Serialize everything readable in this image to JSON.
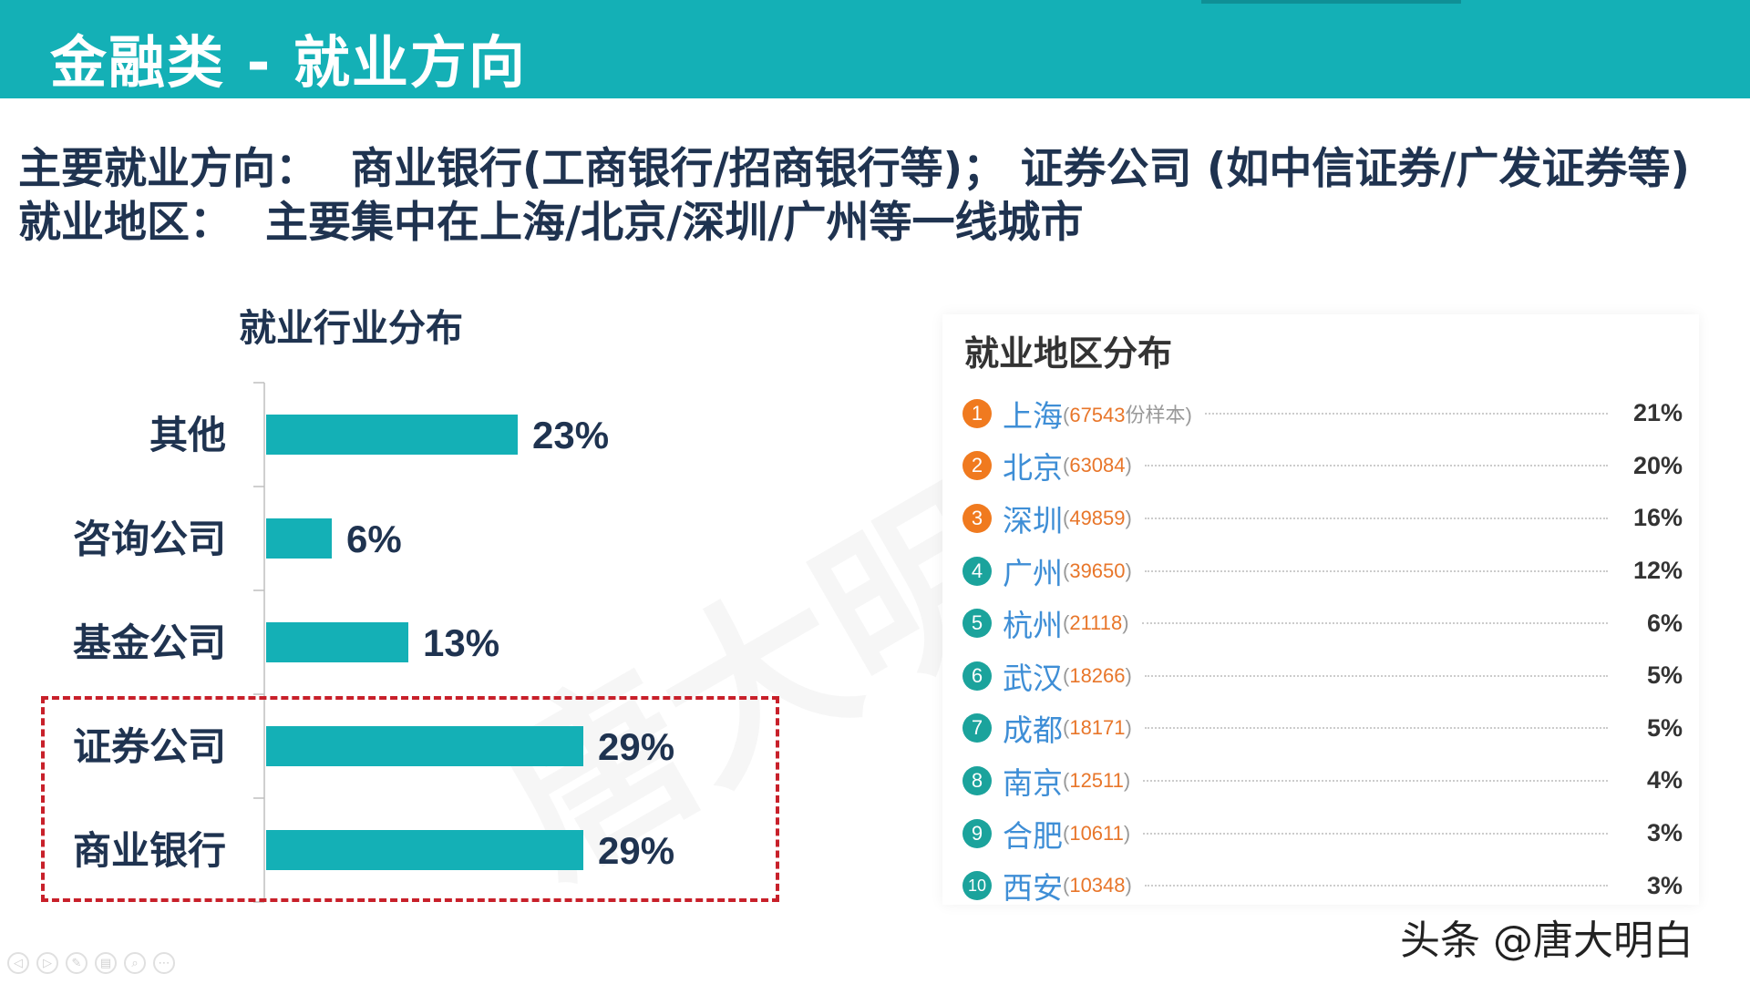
{
  "header": {
    "title": "金融类 - 就业方向"
  },
  "summary": {
    "line1_key": "主要就业方向：",
    "line1_value": "商业银行(工商银行/招商银行等)；  证券公司 (如中信证券/广发证券等)",
    "line2_key": "就业地区：",
    "line2_value": "主要集中在上海/北京/深圳/广州等一线城市"
  },
  "watermark": "唐大明",
  "chart_data": [
    {
      "type": "bar",
      "orientation": "horizontal",
      "title": "就业行业分布",
      "categories": [
        "其他",
        "咨询公司",
        "基金公司",
        "证券公司",
        "商业银行"
      ],
      "values": [
        23,
        6,
        13,
        29,
        29
      ],
      "value_labels": [
        "23%",
        "6%",
        "13%",
        "29%",
        "29%"
      ],
      "unit": "%",
      "xlim": [
        0,
        50
      ],
      "color": "#14b0b6",
      "highlighted": [
        "证券公司",
        "商业银行"
      ],
      "highlight_color": "#c8202a"
    },
    {
      "type": "table",
      "title": "就业地区分布",
      "rows": [
        {
          "rank": "1",
          "city": "上海",
          "sample": "67543",
          "sample_suffix": "份样本)",
          "pct": "21%",
          "color": "#f07a1f"
        },
        {
          "rank": "2",
          "city": "北京",
          "sample": "63084",
          "sample_suffix": ")",
          "pct": "20%",
          "color": "#f07a1f"
        },
        {
          "rank": "3",
          "city": "深圳",
          "sample": "49859",
          "sample_suffix": ")",
          "pct": "16%",
          "color": "#f07a1f"
        },
        {
          "rank": "4",
          "city": "广州",
          "sample": "39650",
          "sample_suffix": ")",
          "pct": "12%",
          "color": "#1ba39c"
        },
        {
          "rank": "5",
          "city": "杭州",
          "sample": "21118",
          "sample_suffix": ")",
          "pct": "6%",
          "color": "#1ba39c"
        },
        {
          "rank": "6",
          "city": "武汉",
          "sample": "18266",
          "sample_suffix": ")",
          "pct": "5%",
          "color": "#1ba39c"
        },
        {
          "rank": "7",
          "city": "成都",
          "sample": "18171",
          "sample_suffix": ")",
          "pct": "5%",
          "color": "#1ba39c"
        },
        {
          "rank": "8",
          "city": "南京",
          "sample": "12511",
          "sample_suffix": ")",
          "pct": "4%",
          "color": "#1ba39c"
        },
        {
          "rank": "9",
          "city": "合肥",
          "sample": "10611",
          "sample_suffix": ")",
          "pct": "3%",
          "color": "#1ba39c"
        },
        {
          "rank": "10",
          "city": "西安",
          "sample": "10348",
          "sample_suffix": ")",
          "pct": "3%",
          "color": "#1ba39c"
        }
      ]
    }
  ],
  "footer": {
    "credit": "头条 @唐大明白"
  },
  "slide_controls": [
    {
      "icon": "prev-icon",
      "glyph": "◁"
    },
    {
      "icon": "next-icon",
      "glyph": "▷"
    },
    {
      "icon": "pen-icon",
      "glyph": "✎"
    },
    {
      "icon": "slides-icon",
      "glyph": "▤"
    },
    {
      "icon": "zoom-icon",
      "glyph": "⌕"
    },
    {
      "icon": "more-icon",
      "glyph": "⋯"
    }
  ]
}
